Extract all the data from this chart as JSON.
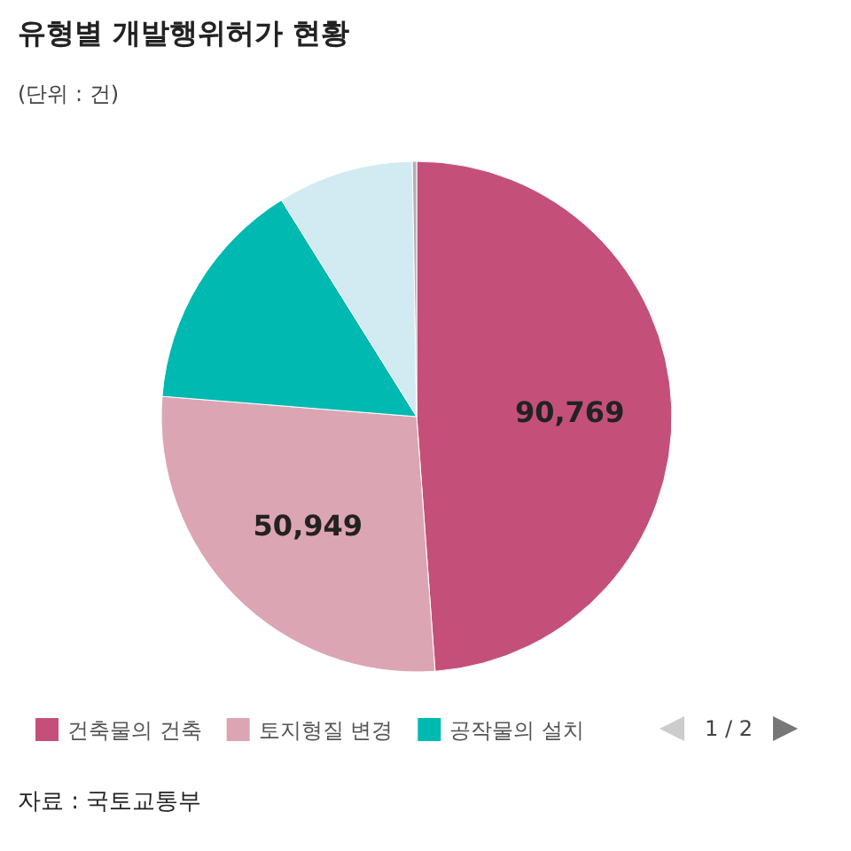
{
  "chart_data": {
    "type": "pie",
    "title": "유형별 개발행위허가 현황",
    "subtitle": "(단위 : 건)",
    "categories": [
      "건축물의 건축",
      "토지형질 변경",
      "공작물의 설치",
      null,
      null
    ],
    "values": [
      90769,
      50949,
      27600,
      16000,
      500
    ],
    "colors": [
      "#c4507a",
      "#dca5b3",
      "#00b9b0",
      "#d2eaf1",
      "#b0b0b0"
    ],
    "value_labels": [
      "90,769",
      "50,949",
      null,
      null,
      null
    ],
    "legend": "bottom",
    "annotations": [
      "1 / 2",
      "자료 : 국토교통부"
    ]
  }
}
